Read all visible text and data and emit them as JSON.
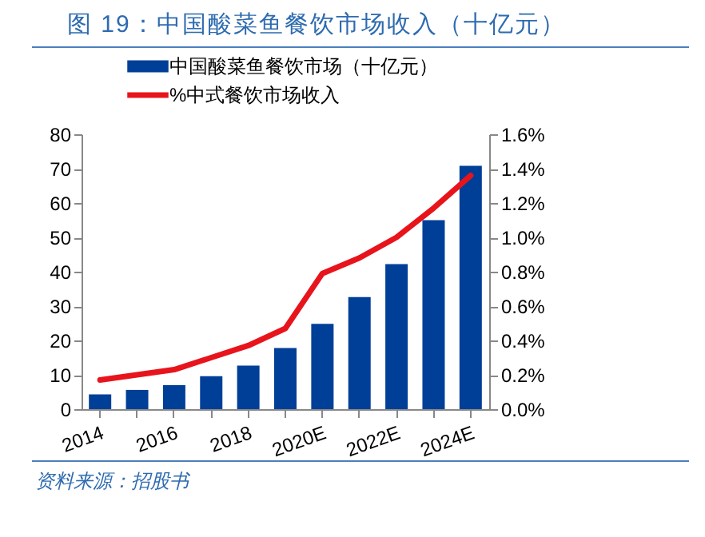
{
  "chart_data": {
    "type": "bar",
    "title": "图 19：中国酸菜鱼餐饮市场收入（十亿元）",
    "categories": [
      "2014",
      null,
      "2016",
      null,
      "2018",
      null,
      "2020E",
      null,
      "2022E",
      null,
      "2024E"
    ],
    "series": [
      {
        "name": "中国酸菜鱼餐饮市场（十亿元）",
        "color": "#003f98",
        "values": [
          4.3,
          5.6,
          7.0,
          9.6,
          12.7,
          17.8,
          24.8,
          32.6,
          42.2,
          55.0,
          70.8
        ]
      },
      {
        "name": "%中式餐饮市场收入",
        "type": "line",
        "axis": "y2",
        "color": "#e8141c",
        "values": [
          0.17,
          0.2,
          0.23,
          0.3,
          0.37,
          0.47,
          0.79,
          0.88,
          1.0,
          1.17,
          1.36
        ]
      }
    ],
    "ylim": [
      0,
      80
    ],
    "yticks": [
      0,
      10,
      20,
      30,
      40,
      50,
      60,
      70,
      80
    ],
    "y2lim": [
      0,
      1.6
    ],
    "y2ticks": [
      {
        "value": 0,
        "label": "0.0%"
      },
      {
        "value": 0.2,
        "label": "0.2%"
      },
      {
        "value": 0.4,
        "label": "0.4%"
      },
      {
        "value": 0.6,
        "label": "0.6%"
      },
      {
        "value": 0.8,
        "label": "0.8%"
      },
      {
        "value": 1.0,
        "label": "1.0%"
      },
      {
        "value": 1.2,
        "label": "1.2%"
      },
      {
        "value": 1.4,
        "label": "1.4%"
      },
      {
        "value": 1.6,
        "label": "1.6%"
      }
    ],
    "grid": false,
    "legend": "top",
    "annotations": [
      "资料来源：招股书"
    ]
  }
}
